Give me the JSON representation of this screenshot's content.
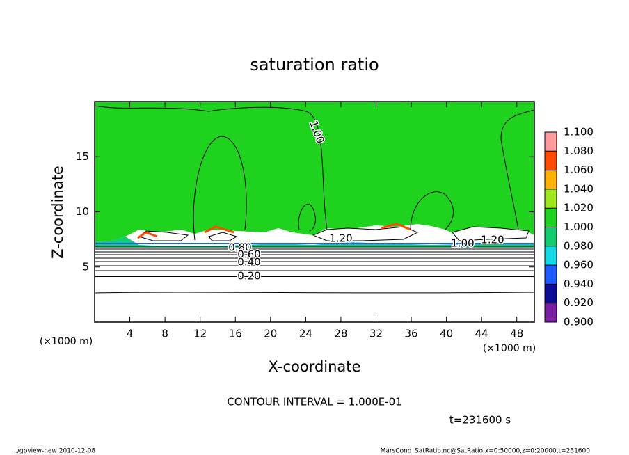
{
  "chart_data": {
    "type": "contour",
    "title": "saturation ratio",
    "x_label": "X-coordinate",
    "y_label": "Z-coordinate",
    "x_unit": "(×1000 m)",
    "xlim": [
      0,
      50
    ],
    "ylim": [
      0,
      20
    ],
    "xticks": [
      4,
      8,
      12,
      16,
      20,
      24,
      28,
      32,
      36,
      40,
      44,
      48
    ],
    "yticks": [
      5,
      10,
      15
    ],
    "contour_labels": [
      "1.00",
      "1.20",
      "1.00",
      "1.20",
      "0.80",
      "0.60",
      "0.40",
      "0.20"
    ],
    "colorbar": {
      "ticks": [
        {
          "value": 0.9,
          "label": "0.900"
        },
        {
          "value": 0.92,
          "label": "0.920"
        },
        {
          "value": 0.94,
          "label": "0.940"
        },
        {
          "value": 0.96,
          "label": "0.960"
        },
        {
          "value": 0.98,
          "label": "0.980"
        },
        {
          "value": 1.0,
          "label": "1.000"
        },
        {
          "value": 1.02,
          "label": "1.020"
        },
        {
          "value": 1.04,
          "label": "1.040"
        },
        {
          "value": 1.06,
          "label": "1.060"
        },
        {
          "value": 1.08,
          "label": "1.080"
        },
        {
          "value": 1.1,
          "label": "1.100"
        }
      ],
      "colors": [
        "#7b1fa2",
        "#0d0d9a",
        "#1f5cff",
        "#14d8e6",
        "#12cc70",
        "#1ed21e",
        "#9ee61e",
        "#ffb000",
        "#ff4a00",
        "#ff9a9a"
      ]
    },
    "contour_interval": "CONTOUR INTERVAL = 1.000E-01",
    "time_label": "t=231600 s",
    "footer_left": "./gpview-new  2010-12-08",
    "footer_right": "MarsCond_SatRatio.nc@SatRatio,x=0:50000,z=0:20000,t=231600"
  }
}
